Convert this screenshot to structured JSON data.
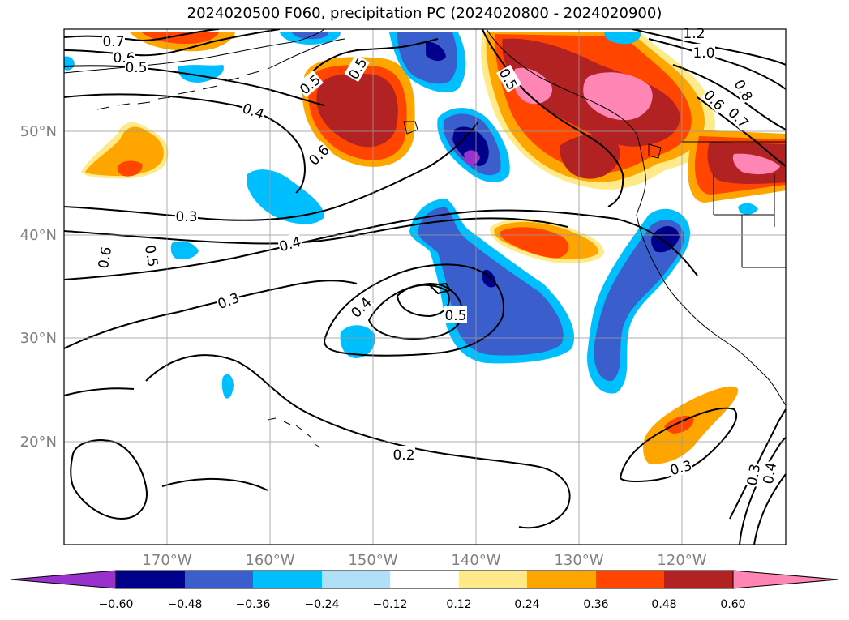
{
  "title": "2024020500 F060, precipitation PC (2024020800 - 2024020900)",
  "longitude_labels": [
    "170°W",
    "160°W",
    "150°W",
    "140°W",
    "130°W",
    "120°W"
  ],
  "latitude_labels": [
    "50°N",
    "40°N",
    "30°N",
    "20°N"
  ],
  "contour_labels": [
    "0.7",
    "0.6",
    "0.5",
    "0.5",
    "0.4",
    "0.6",
    "0.3",
    "0.4",
    "0.6",
    "0.5",
    "0.3",
    "0.4",
    "0.5",
    "0.5",
    "0.5",
    "1.2",
    "1.0",
    "0.8",
    "0.6",
    "0.7",
    "0.2",
    "0.3",
    "0.3",
    "0.4"
  ],
  "colorbar": {
    "tick_labels": [
      "−0.60",
      "−0.48",
      "−0.36",
      "−0.24",
      "−0.12",
      "0.12",
      "0.24",
      "0.36",
      "0.48",
      "0.60"
    ],
    "colors": [
      "#9932cc",
      "#00008b",
      "#3a5fcd",
      "#00bfff",
      "#b0e0f8",
      "#ffffff",
      "#ffea8a",
      "#ffa500",
      "#ff4500",
      "#b22222",
      "#ff85b4"
    ]
  }
}
